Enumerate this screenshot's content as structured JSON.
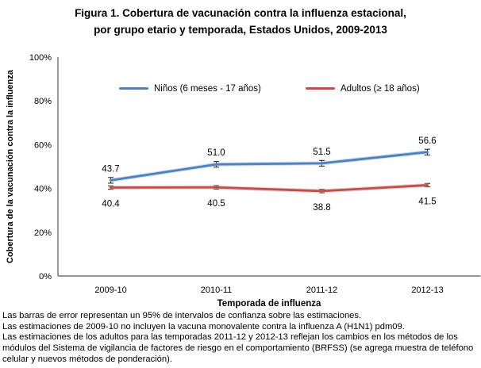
{
  "figure": {
    "title_line1": "Figura 1. Cobertura de vacunación contra la influenza estacional,",
    "title_line2": "por grupo etario y temporada, Estados Unidos, 2009-2013"
  },
  "chart_data": {
    "type": "line",
    "title": "Figura 1. Cobertura de vacunación contra la influenza estacional, por grupo etario y temporada, Estados Unidos, 2009-2013",
    "categories": [
      "2009-10",
      "2010-11",
      "2011-12",
      "2012-13"
    ],
    "series": [
      {
        "name": "Niños (6 meses - 17 años)",
        "values": [
          43.7,
          51.0,
          51.5,
          56.6
        ],
        "value_labels": [
          "43.7",
          "51.0",
          "51.5",
          "56.6"
        ],
        "color": "#4F81BD",
        "highlight": "#95B3D7",
        "label_position": "above",
        "error_bar_half": 1.3
      },
      {
        "name": "Adultos (≥ 18 años)",
        "values": [
          40.4,
          40.5,
          38.8,
          41.5
        ],
        "value_labels": [
          "40.4",
          "40.5",
          "38.8",
          "41.5"
        ],
        "color": "#C0504D",
        "highlight": "#D99694",
        "label_position": "below",
        "error_bar_half": 0.8
      }
    ],
    "xlabel": "Temporada de influenza",
    "ylabel": "Cobertura de la vacunación contra la influenza",
    "ylim": [
      0,
      100
    ],
    "ytick_step": 20,
    "ytick_labels": [
      "0%",
      "20%",
      "40%",
      "60%",
      "80%",
      "100%"
    ],
    "grid": false,
    "legend_position": "top-inside",
    "error_bars_visible": true
  },
  "footnotes": [
    "Las barras de error representan un 95% de intervalos de confianza sobre las estimaciones.",
    "Las estimaciones de 2009-10 no incluyen la vacuna monovalente contra la influenza A (H1N1) pdm09.",
    "Las estimaciones de los adultos para las temporadas 2011-12 y 2012-13 reflejan los cambios en los métodos de los módulos del Sistema de vigilancia de factores de riesgo en el comportamiento (BRFSS) (se agrega muestra de teléfono celular y nuevos métodos de ponderación)."
  ],
  "colors": {
    "axis": "#595959",
    "error_bar": "#1a1a1a",
    "text": "#000000",
    "background": "#ffffff"
  }
}
